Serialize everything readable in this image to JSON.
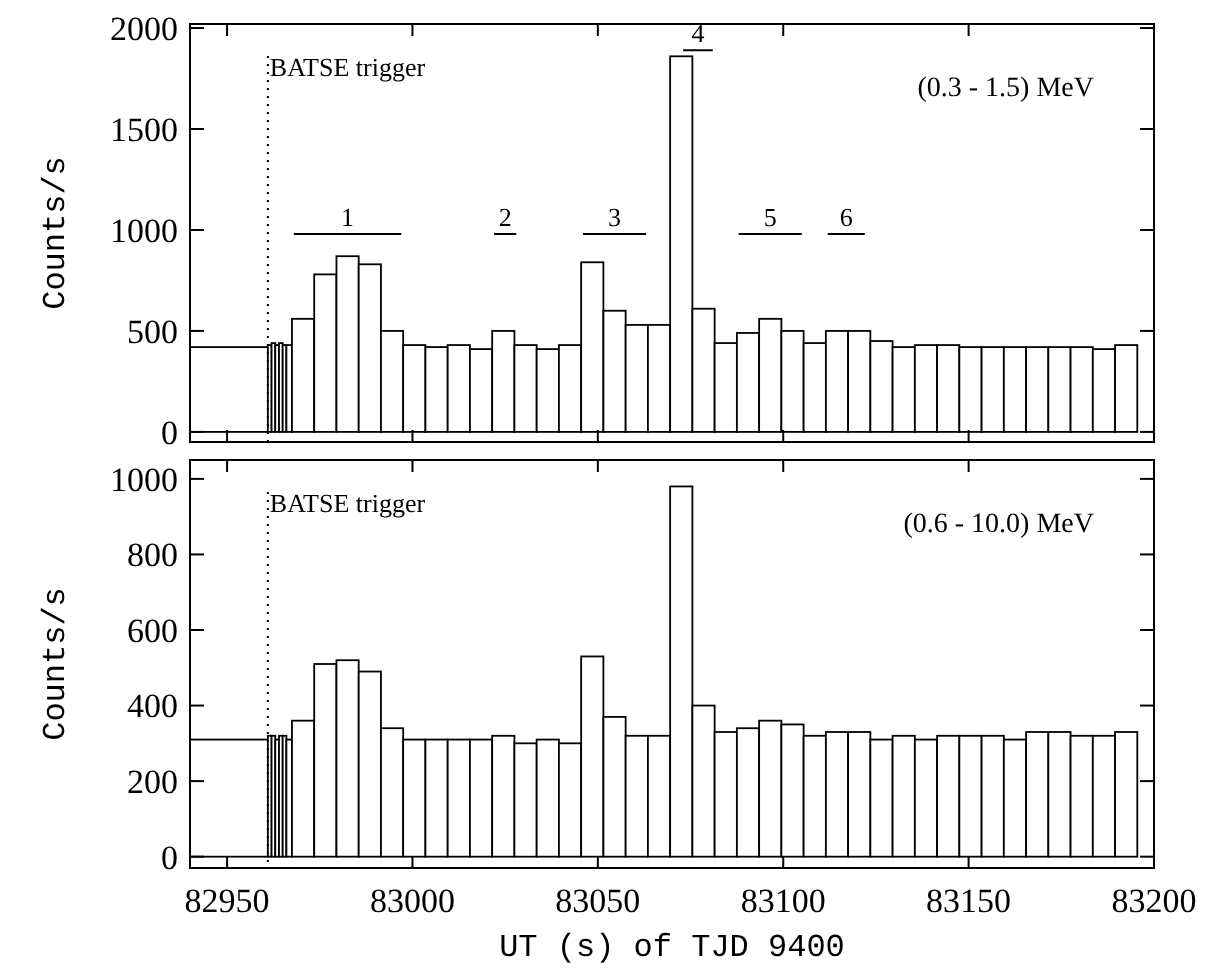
{
  "chart_data": [
    {
      "type": "histogram",
      "ylabel": "Counts/s",
      "tick_labels": "y",
      "xlim": [
        82940,
        83200
      ],
      "xticks": [
        {
          "value": 82950,
          "label": null
        },
        {
          "value": 83000,
          "label": null
        },
        {
          "value": 83050,
          "label": null
        },
        {
          "value": 83100,
          "label": null
        },
        {
          "value": 83150,
          "label": null
        },
        {
          "value": 83200,
          "label": null
        }
      ],
      "ylim": [
        -50,
        2020
      ],
      "yticks": [
        0,
        500,
        1000,
        1500,
        2000
      ],
      "bins": [
        82940,
        82961,
        82962,
        82963,
        82964,
        82965,
        82966,
        82967.5,
        82973.5,
        82979.5,
        82985.5,
        82991.5,
        82997.5,
        83003.5,
        83009.5,
        83015.5,
        83021.5,
        83027.5,
        83033.5,
        83039.5,
        83045.5,
        83051.5,
        83057.5,
        83063.5,
        83069.5,
        83075.5,
        83081.5,
        83087.5,
        83093.5,
        83099.5,
        83105.5,
        83111.5,
        83117.5,
        83123.5,
        83129.5,
        83135.5,
        83141.5,
        83147.5,
        83153.5,
        83159.5,
        83165.5,
        83171.5,
        83177.5,
        83183.5,
        83189.5,
        83195.5
      ],
      "values": [
        420,
        430,
        440,
        430,
        440,
        430,
        430,
        560,
        780,
        870,
        830,
        500,
        430,
        420,
        430,
        410,
        500,
        430,
        410,
        430,
        840,
        600,
        530,
        530,
        1860,
        610,
        440,
        490,
        560,
        500,
        440,
        500,
        500,
        450,
        420,
        430,
        430,
        420,
        420,
        420,
        420,
        420,
        420,
        410,
        430
      ],
      "ref_lines": [
        {
          "axis": "x",
          "value": 82961,
          "label": "BATSE trigger",
          "line_style": "dotted"
        }
      ],
      "series": [
        {
          "type": "line",
          "name": "1",
          "color": "#000000",
          "x": [
            82968,
            82997
          ],
          "values": [
            980,
            980
          ]
        },
        {
          "type": "line",
          "name": "2",
          "color": "#000000",
          "x": [
            83022,
            83028
          ],
          "values": [
            980,
            980
          ]
        },
        {
          "type": "line",
          "name": "3",
          "color": "#000000",
          "x": [
            83046,
            83063
          ],
          "values": [
            980,
            980
          ]
        },
        {
          "type": "line",
          "name": "4",
          "color": "#000000",
          "x": [
            83073,
            83081
          ],
          "values": [
            1890,
            1890
          ]
        },
        {
          "type": "line",
          "name": "5",
          "color": "#000000",
          "x": [
            83088,
            83105
          ],
          "values": [
            980,
            980
          ]
        },
        {
          "type": "line",
          "name": "6",
          "color": "#000000",
          "x": [
            83112,
            83122
          ],
          "values": [
            980,
            980
          ]
        }
      ],
      "annotations": [
        "(0.3 - 1.5) MeV"
      ]
    },
    {
      "type": "histogram",
      "ylabel": "Counts/s",
      "xlabel": "UT (s) of TJD 9400",
      "xlim": [
        82940,
        83200
      ],
      "xticks": [
        82950,
        83000,
        83050,
        83100,
        83150,
        83200
      ],
      "ylim": [
        -30,
        1050
      ],
      "yticks": [
        0,
        200,
        400,
        600,
        800,
        1000
      ],
      "bins": [
        82940,
        82961,
        82962,
        82963,
        82964,
        82965,
        82966,
        82967.5,
        82973.5,
        82979.5,
        82985.5,
        82991.5,
        82997.5,
        83003.5,
        83009.5,
        83015.5,
        83021.5,
        83027.5,
        83033.5,
        83039.5,
        83045.5,
        83051.5,
        83057.5,
        83063.5,
        83069.5,
        83075.5,
        83081.5,
        83087.5,
        83093.5,
        83099.5,
        83105.5,
        83111.5,
        83117.5,
        83123.5,
        83129.5,
        83135.5,
        83141.5,
        83147.5,
        83153.5,
        83159.5,
        83165.5,
        83171.5,
        83177.5,
        83183.5,
        83189.5,
        83195.5
      ],
      "values": [
        310,
        320,
        320,
        310,
        320,
        320,
        310,
        360,
        510,
        520,
        490,
        340,
        310,
        310,
        310,
        310,
        320,
        300,
        310,
        300,
        530,
        370,
        320,
        320,
        980,
        400,
        330,
        340,
        360,
        350,
        320,
        330,
        330,
        310,
        320,
        310,
        320,
        320,
        320,
        310,
        330,
        330,
        320,
        320,
        330
      ],
      "ref_lines": [
        {
          "axis": "x",
          "value": 82961,
          "label": "BATSE trigger",
          "line_style": "dotted"
        }
      ],
      "annotations": [
        "(0.6 - 10.0) MeV"
      ]
    }
  ]
}
